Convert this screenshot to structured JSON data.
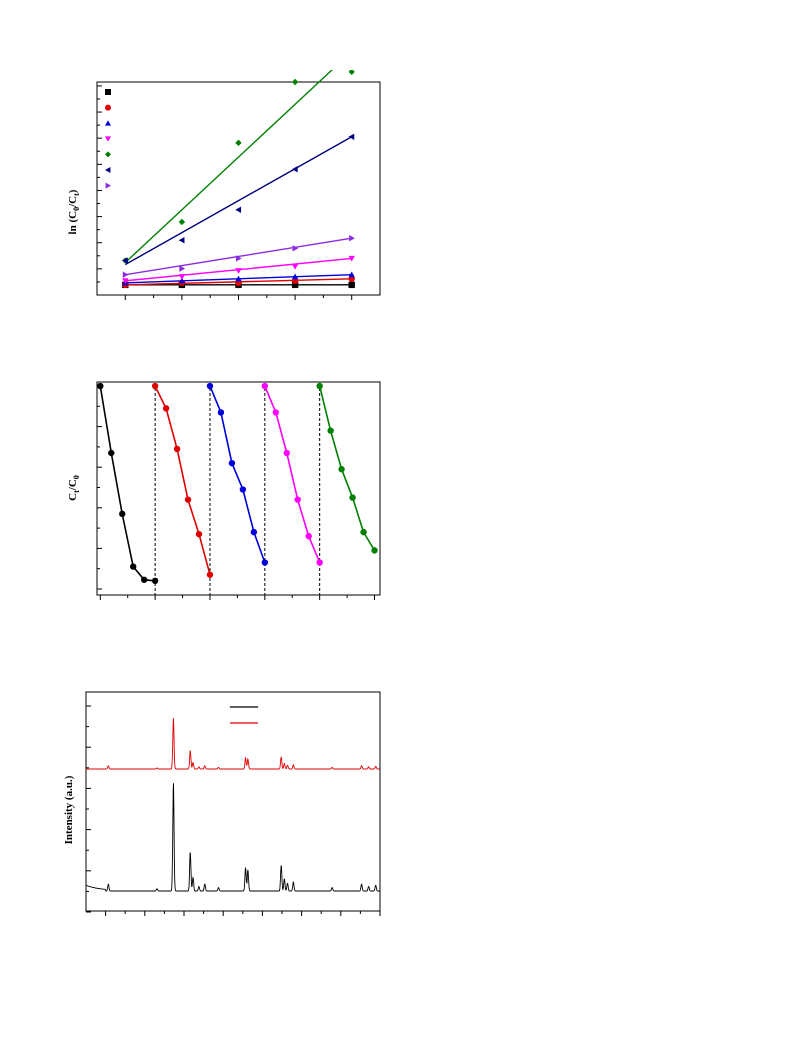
{
  "chart_data": [
    {
      "type": "scatter",
      "title": "",
      "xlabel": "",
      "ylabel": "ln (C_0/C_t)",
      "ylabel_parts": {
        "main": "ln (C",
        "sub0": "0",
        "mid": "/C",
        "sub1": "t",
        "end": ")"
      },
      "x": [
        1,
        2,
        3,
        4,
        5
      ],
      "xlim": [
        0.5,
        5.5
      ],
      "ylim": [
        -0.05,
        1.0
      ],
      "grid": false,
      "legend": "top-left",
      "series": [
        {
          "marker": "square",
          "color": "#000000",
          "points": [
            0.0,
            0.0,
            0.0,
            0.0,
            0.0
          ],
          "fit": [
            0.0,
            0.0
          ]
        },
        {
          "marker": "circle",
          "color": "#e00000",
          "points": [
            0.0,
            0.01,
            0.01,
            0.02,
            0.03
          ],
          "fit": [
            0.0,
            0.03
          ]
        },
        {
          "marker": "triangle-up",
          "color": "#0000dd",
          "points": [
            0.01,
            0.02,
            0.03,
            0.04,
            0.05
          ],
          "fit": [
            0.01,
            0.05
          ]
        },
        {
          "marker": "triangle-down",
          "color": "#ff00ff",
          "points": [
            0.02,
            0.04,
            0.07,
            0.09,
            0.13
          ],
          "fit": [
            0.02,
            0.13
          ]
        },
        {
          "marker": "diamond",
          "color": "#008000",
          "points": [
            0.12,
            0.31,
            0.7,
            1.0,
            1.05
          ],
          "fit": [
            0.11,
            1.15
          ]
        },
        {
          "marker": "triangle-left",
          "color": "#000080",
          "points": [
            0.12,
            0.22,
            0.37,
            0.57,
            0.73
          ],
          "fit": [
            0.1,
            0.73
          ]
        },
        {
          "marker": "triangle-right",
          "color": "#8a2be2",
          "points": [
            0.05,
            0.08,
            0.13,
            0.18,
            0.23
          ],
          "fit": [
            0.05,
            0.23
          ]
        }
      ]
    },
    {
      "type": "line",
      "title": "",
      "xlabel": "",
      "ylabel": "C_t/C_0",
      "ylabel_parts": {
        "main": "C",
        "sub0": "t",
        "mid": "/C",
        "sub1": "0"
      },
      "xlim": [
        -0.3,
        25.5
      ],
      "ylim": [
        -0.05,
        1.0
      ],
      "cycle_boundaries": [
        5,
        10,
        15,
        20
      ],
      "grid": false,
      "series": [
        {
          "color": "#000000",
          "x": [
            0,
            1,
            2,
            3,
            4,
            5
          ],
          "y": [
            0.98,
            0.65,
            0.35,
            0.09,
            0.025,
            0.02
          ]
        },
        {
          "color": "#e00000",
          "x": [
            5,
            6,
            7,
            8,
            9,
            10
          ],
          "y": [
            0.98,
            0.87,
            0.67,
            0.42,
            0.25,
            0.05
          ]
        },
        {
          "color": "#0000dd",
          "x": [
            10,
            11,
            12,
            13,
            14,
            15
          ],
          "y": [
            0.98,
            0.85,
            0.6,
            0.47,
            0.26,
            0.11
          ]
        },
        {
          "color": "#ff00ff",
          "x": [
            15,
            16,
            17,
            18,
            19,
            20
          ],
          "y": [
            0.98,
            0.85,
            0.65,
            0.42,
            0.24,
            0.11
          ]
        },
        {
          "color": "#008000",
          "x": [
            20,
            21,
            22,
            23,
            24,
            25
          ],
          "y": [
            0.98,
            0.76,
            0.57,
            0.43,
            0.26,
            0.17
          ]
        }
      ]
    },
    {
      "type": "line",
      "title": "",
      "xlabel": "",
      "ylabel": "Intensity (a.u.)",
      "xlim": [
        5,
        80
      ],
      "grid": false,
      "legend": "top-right",
      "legend_colors": [
        "#000000",
        "#e00000"
      ],
      "peaks": [
        {
          "pos": 10.7,
          "h": 0.06
        },
        {
          "pos": 23.1,
          "h": 0.02
        },
        {
          "pos": 27.3,
          "h": 0.97
        },
        {
          "pos": 31.6,
          "h": 0.35
        },
        {
          "pos": 32.3,
          "h": 0.12
        },
        {
          "pos": 33.8,
          "h": 0.04
        },
        {
          "pos": 35.3,
          "h": 0.06
        },
        {
          "pos": 38.8,
          "h": 0.03
        },
        {
          "pos": 45.7,
          "h": 0.21
        },
        {
          "pos": 46.3,
          "h": 0.19
        },
        {
          "pos": 54.8,
          "h": 0.23
        },
        {
          "pos": 55.6,
          "h": 0.11
        },
        {
          "pos": 56.4,
          "h": 0.07
        },
        {
          "pos": 57.9,
          "h": 0.08
        },
        {
          "pos": 67.8,
          "h": 0.03
        },
        {
          "pos": 75.3,
          "h": 0.06
        },
        {
          "pos": 77.1,
          "h": 0.04
        },
        {
          "pos": 78.9,
          "h": 0.05
        }
      ],
      "series": [
        {
          "color": "#000000",
          "scale": 1.0
        },
        {
          "color": "#e00000",
          "scale": 0.47
        }
      ]
    }
  ]
}
